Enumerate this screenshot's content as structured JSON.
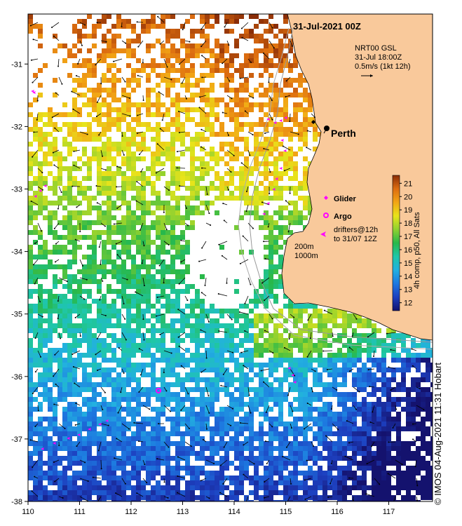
{
  "map": {
    "title": "31-Jul-2021 00Z",
    "x_ticks": [
      110,
      111,
      112,
      113,
      114,
      115,
      116,
      117
    ],
    "y_ticks": [
      -31,
      -32,
      -33,
      -34,
      -35,
      -36,
      -37,
      -38
    ],
    "x_ticks_labels": [
      "110",
      "111",
      "112",
      "113",
      "114",
      "115",
      "116",
      "117"
    ],
    "y_ticks_labels": [
      "-31",
      "-32",
      "-33",
      "-34",
      "-35",
      "-36",
      "-37",
      "-38"
    ],
    "lon_range": [
      110,
      117.85
    ],
    "lat_range": [
      -38,
      -30.2
    ],
    "land_color": "#f9c99b",
    "city": {
      "name": "Perth",
      "lon": 115.86,
      "lat": -31.95
    },
    "current_info": {
      "line1": "NRT00 GSL",
      "line2": "31-Jul 18:00Z",
      "line3": "0.5m/s (1kt 12h)"
    },
    "legend": {
      "glider": "Glider",
      "argo": "Argo",
      "drifters_line1": "drifters@12h",
      "drifters_line2": "to 31/07 12Z"
    },
    "contours": {
      "shallow": "200m",
      "deep": "1000m"
    },
    "colorbar": {
      "label": "4h comp, p50, All Sats",
      "ticks": [
        12,
        13,
        14,
        15,
        16,
        17,
        18,
        19,
        20,
        21
      ],
      "ticks_labels": [
        "12",
        "13",
        "14",
        "15",
        "16",
        "17",
        "18",
        "19",
        "20",
        "21"
      ],
      "min": 11.4,
      "max": 21.6
    },
    "credit": "© IMOS 04-Aug-2021 11:31 Hobart"
  }
}
